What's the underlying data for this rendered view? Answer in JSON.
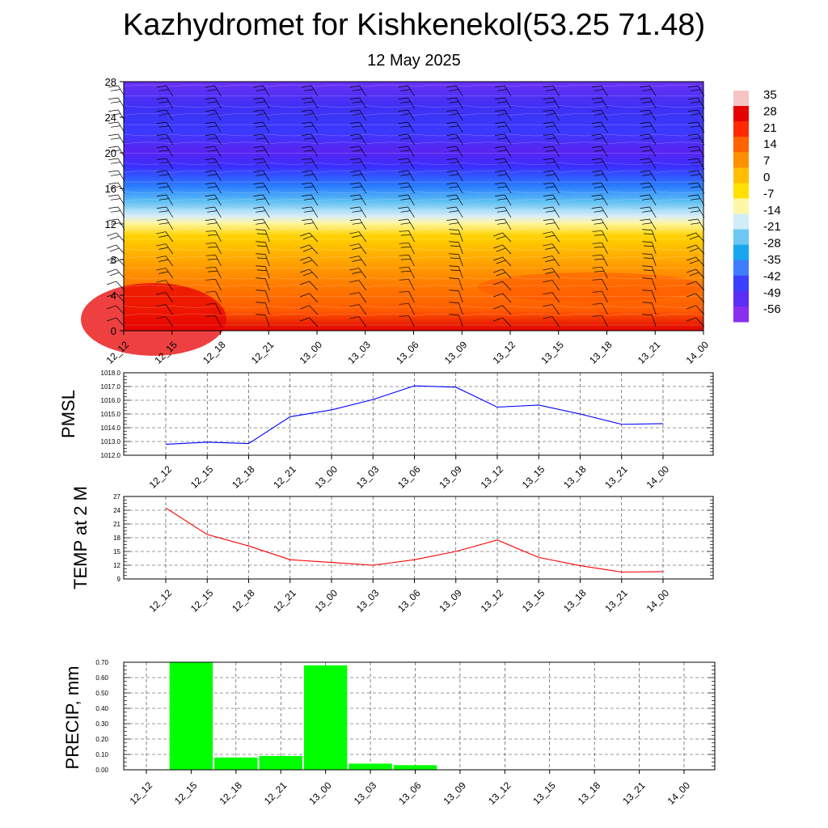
{
  "title": "Kazhydromet for Kishkenekol(53.25 71.48)",
  "subtitle": "12 May 2025",
  "chart_data": [
    {
      "type": "heatmap",
      "name": "cross-section",
      "x_ticks": [
        "12_12",
        "12_15",
        "12_18",
        "12_21",
        "13_00",
        "13_03",
        "13_06",
        "13_09",
        "13_12",
        "13_15",
        "13_18",
        "13_21",
        "14_00"
      ],
      "yticks": [
        0,
        4,
        8,
        12,
        16,
        20,
        24,
        28
      ],
      "ylim": [
        0,
        28
      ],
      "colorbar_labels": [
        "35",
        "28",
        "21",
        "14",
        "7",
        "0",
        "-7",
        "-14",
        "-21",
        "-28",
        "-35",
        "-42",
        "-49",
        "-56"
      ],
      "colorbar_range": [
        -63,
        42
      ],
      "colorbar_colors": [
        "#f5b5b5",
        "#e60000",
        "#ff3000",
        "#ff7000",
        "#ffaa00",
        "#ffd800",
        "#fff89a",
        "#d8eef8",
        "#6ec8f5",
        "#1ea8f0",
        "#4a7bff",
        "#3a30ff",
        "#8a28f0"
      ]
    },
    {
      "type": "line",
      "name": "pmsl",
      "ylabel": "PMSL",
      "x": [
        "12_12",
        "12_15",
        "12_18",
        "12_21",
        "13_00",
        "13_03",
        "13_06",
        "13_09",
        "13_12",
        "13_15",
        "13_18",
        "13_21",
        "14_00"
      ],
      "series": [
        {
          "values": [
            1012.8,
            1012.95,
            1012.85,
            1014.8,
            1015.3,
            1016.05,
            1017.05,
            1016.95,
            1015.5,
            1015.65,
            1015.0,
            1014.25,
            1014.3
          ],
          "color": "#0000ff"
        }
      ],
      "ylim": [
        1012.0,
        1018.0
      ],
      "yticks": [
        "1012.0",
        "1013.0",
        "1014.0",
        "1015.0",
        "1016.0",
        "1017.0",
        "1018.0"
      ]
    },
    {
      "type": "line",
      "name": "temp",
      "ylabel": "TEMP at 2 M",
      "x": [
        "12_12",
        "12_15",
        "12_18",
        "12_21",
        "13_00",
        "13_03",
        "13_06",
        "13_09",
        "13_12",
        "13_15",
        "13_18",
        "13_21",
        "14_00"
      ],
      "series": [
        {
          "values": [
            24.5,
            18.7,
            16.2,
            13.2,
            12.6,
            12.0,
            13.2,
            15.0,
            17.5,
            13.7,
            11.9,
            10.5,
            10.6
          ],
          "color": "#ff0000"
        }
      ],
      "ylim": [
        9,
        27
      ],
      "yticks": [
        "9",
        "12",
        "15",
        "18",
        "21",
        "24",
        "27"
      ]
    },
    {
      "type": "bar",
      "name": "precip",
      "ylabel": "PRECIP, mm",
      "categories": [
        "12_12",
        "12_15",
        "12_18",
        "12_21",
        "13_00",
        "13_03",
        "13_06",
        "13_09",
        "13_12",
        "13_15",
        "13_18",
        "13_21",
        "14_00"
      ],
      "values": [
        0.0,
        0.7,
        0.08,
        0.09,
        0.68,
        0.04,
        0.03,
        0.0,
        0.0,
        0.0,
        0.0,
        0.0,
        0.0
      ],
      "color": "#00ff00",
      "ylim": [
        0.0,
        0.7
      ],
      "yticks": [
        "0.00",
        "0.10",
        "0.20",
        "0.30",
        "0.40",
        "0.50",
        "0.60",
        "0.70"
      ]
    }
  ]
}
